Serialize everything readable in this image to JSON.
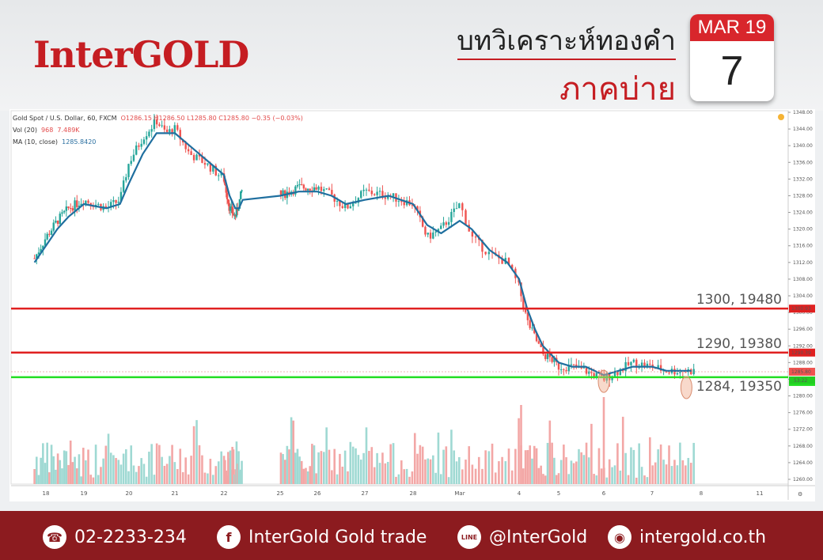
{
  "header": {
    "logo": "InterGOLD",
    "title_line1": "บทวิเคราะห์ทองคำ",
    "title_line2": "ภาคบ่าย",
    "calendar_month": "MAR 19",
    "calendar_day": "7"
  },
  "legend": {
    "symbol": "Gold Spot / U.S. Dollar, 60, FXCM",
    "ohlc": "O1286.15  H1286.50  L1285.80  C1285.80  −0.35 (−0.03%)",
    "vol_label": "Vol (20)",
    "vol_value1": "968",
    "vol_value2": "7.489K",
    "ma_label": "MA (10, close)",
    "ma_value": "1285.8420"
  },
  "chart_data": {
    "type": "candlestick",
    "price_axis": {
      "range": [
        1258,
        1350
      ],
      "ticks": [
        1260,
        1264,
        1268,
        1272,
        1276,
        1280,
        1284,
        1288,
        1292,
        1296,
        1300,
        1304,
        1308,
        1312,
        1316,
        1320,
        1324,
        1328,
        1332,
        1336,
        1340,
        1344,
        1348
      ]
    },
    "x_ticks": [
      "18",
      "19",
      "20",
      "21",
      "22",
      "25",
      "26",
      "27",
      "28",
      "Mar",
      "4",
      "5",
      "6",
      "7",
      "8",
      "11"
    ],
    "x_tick_days": [
      18,
      19,
      20,
      21,
      22,
      25,
      26,
      27,
      28,
      29,
      30,
      31,
      32,
      33,
      34,
      37
    ],
    "price_path": [
      [
        17.7,
        1313
      ],
      [
        18.0,
        1318
      ],
      [
        18.3,
        1322
      ],
      [
        18.6,
        1325
      ],
      [
        19.0,
        1327
      ],
      [
        19.5,
        1325
      ],
      [
        19.8,
        1327
      ],
      [
        20.0,
        1336
      ],
      [
        20.3,
        1342
      ],
      [
        20.6,
        1346
      ],
      [
        20.8,
        1343
      ],
      [
        21.0,
        1344
      ],
      [
        21.3,
        1338
      ],
      [
        21.6,
        1336
      ],
      [
        22.0,
        1332
      ],
      [
        22.3,
        1325
      ],
      [
        22.6,
        1323
      ],
      [
        22.8,
        1326
      ],
      [
        23.0,
        1330
      ],
      [
        25.0,
        1328
      ],
      [
        25.5,
        1330
      ],
      [
        26.0,
        1330
      ],
      [
        26.3,
        1328
      ],
      [
        26.6,
        1325
      ],
      [
        27.0,
        1329
      ],
      [
        27.5,
        1328
      ],
      [
        28.0,
        1326
      ],
      [
        28.3,
        1318
      ],
      [
        28.6,
        1320
      ],
      [
        29.0,
        1326
      ],
      [
        29.2,
        1318
      ],
      [
        29.5,
        1314
      ],
      [
        29.8,
        1312
      ],
      [
        30.0,
        1306
      ],
      [
        30.2,
        1298
      ],
      [
        30.4,
        1294
      ],
      [
        30.6,
        1290
      ],
      [
        30.8,
        1289
      ],
      [
        31.0,
        1287
      ],
      [
        31.3,
        1287
      ],
      [
        31.6,
        1286
      ],
      [
        32.0,
        1284
      ],
      [
        32.3,
        1286
      ],
      [
        32.6,
        1288
      ],
      [
        33.0,
        1287
      ],
      [
        33.3,
        1286
      ],
      [
        33.6,
        1286
      ],
      [
        33.8,
        1286
      ]
    ],
    "ma_path": [
      [
        17.7,
        1312
      ],
      [
        18.0,
        1316
      ],
      [
        18.3,
        1320
      ],
      [
        18.6,
        1323
      ],
      [
        19.0,
        1326
      ],
      [
        19.5,
        1325
      ],
      [
        19.8,
        1326
      ],
      [
        20.0,
        1331
      ],
      [
        20.3,
        1338
      ],
      [
        20.6,
        1343
      ],
      [
        20.8,
        1343
      ],
      [
        21.0,
        1343
      ],
      [
        21.3,
        1340
      ],
      [
        21.6,
        1337
      ],
      [
        22.0,
        1333
      ],
      [
        22.3,
        1328
      ],
      [
        22.6,
        1325
      ],
      [
        22.8,
        1325
      ],
      [
        23.0,
        1327
      ],
      [
        25.0,
        1328
      ],
      [
        25.5,
        1329
      ],
      [
        26.0,
        1329
      ],
      [
        26.3,
        1328
      ],
      [
        26.6,
        1326
      ],
      [
        27.0,
        1327
      ],
      [
        27.5,
        1328
      ],
      [
        28.0,
        1326
      ],
      [
        28.3,
        1321
      ],
      [
        28.6,
        1319
      ],
      [
        29.0,
        1322
      ],
      [
        29.2,
        1320
      ],
      [
        29.5,
        1315
      ],
      [
        29.8,
        1312
      ],
      [
        30.0,
        1308
      ],
      [
        30.2,
        1301
      ],
      [
        30.4,
        1296
      ],
      [
        30.6,
        1292
      ],
      [
        30.8,
        1290
      ],
      [
        31.0,
        1288
      ],
      [
        31.3,
        1287
      ],
      [
        31.6,
        1287
      ],
      [
        32.0,
        1285
      ],
      [
        32.3,
        1286
      ],
      [
        32.6,
        1287
      ],
      [
        33.0,
        1287
      ],
      [
        33.3,
        1286
      ],
      [
        33.6,
        1286
      ],
      [
        33.8,
        1286
      ]
    ],
    "levels": [
      {
        "price": 1300.93,
        "label": "1300, 19480",
        "tag": "1300.93",
        "color": "#e02020"
      },
      {
        "price": 1290.39,
        "label": "1290, 19380",
        "tag": "1290.39",
        "color": "#e02020"
      },
      {
        "price": 1284.48,
        "label": "1284, 19350",
        "tag": "1284.48",
        "color": "#22dd22"
      }
    ],
    "current_price_tag": "1285.80",
    "countdown_tag": "53:22",
    "highlight_points": [
      [
        32.0,
        1283.5
      ],
      [
        33.7,
        1282.0
      ]
    ]
  },
  "footer": {
    "phone": "02-2233-234",
    "facebook": "InterGold Gold trade",
    "line": "@InterGold",
    "website": "intergold.co.th",
    "phone_icon": "phone-icon",
    "facebook_icon": "facebook-icon",
    "line_icon": "line-icon",
    "web_icon": "globe-icon"
  },
  "colors": {
    "brand_red": "#c51d22",
    "footer_bg": "#8c1b1f",
    "candle_up": "#26a69a",
    "candle_down": "#ef5350",
    "ma_line": "#1f6f9f"
  }
}
